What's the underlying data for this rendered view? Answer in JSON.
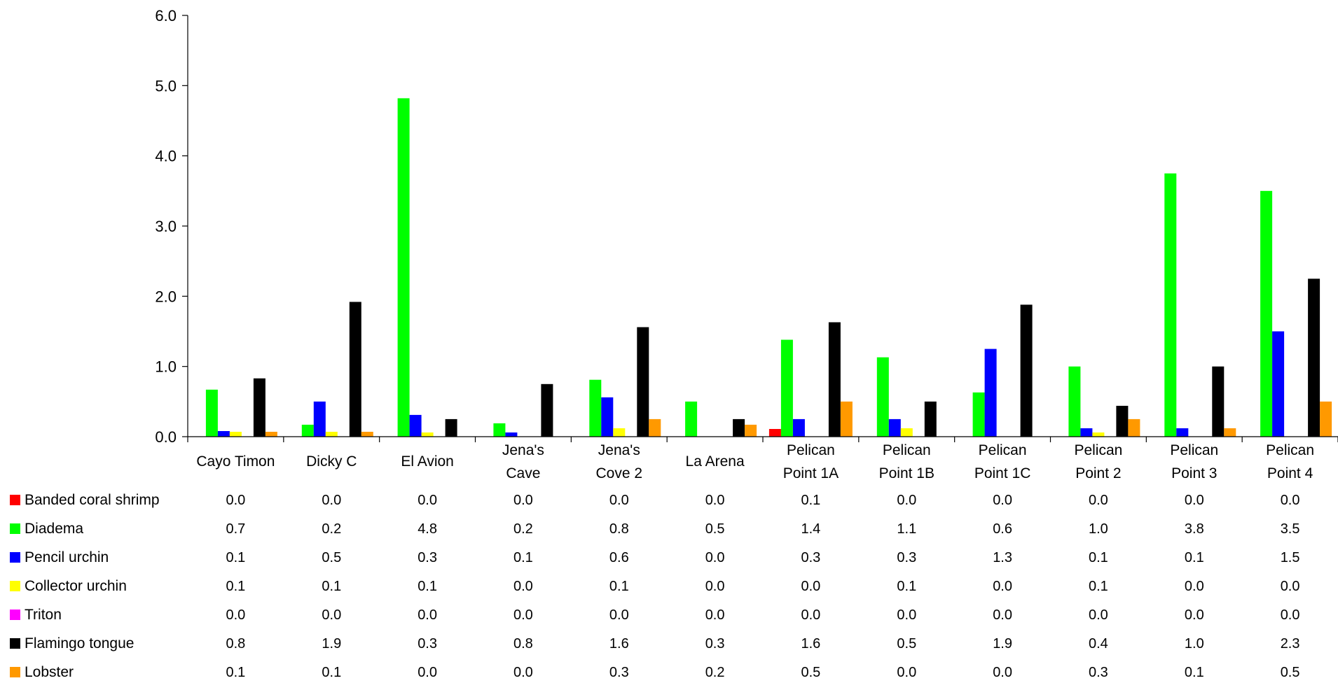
{
  "chart_data": {
    "type": "bar",
    "title": "",
    "xlabel": "",
    "ylabel": "",
    "ylim": [
      0,
      6
    ],
    "yticks": [
      "0.0",
      "1.0",
      "2.0",
      "3.0",
      "4.0",
      "5.0",
      "6.0"
    ],
    "grid": false,
    "legend": "bottom-left data table",
    "categories": [
      [
        "Cayo Timon"
      ],
      [
        "Dicky C"
      ],
      [
        "El Avion"
      ],
      [
        "Jena's",
        "Cave"
      ],
      [
        "Jena's",
        "Cove 2"
      ],
      [
        "La Arena"
      ],
      [
        "Pelican",
        "Point 1A"
      ],
      [
        "Pelican",
        "Point 1B"
      ],
      [
        "Pelican",
        "Point 1C"
      ],
      [
        "Pelican",
        "Point 2"
      ],
      [
        "Pelican",
        "Point 3"
      ],
      [
        "Pelican",
        "Point 4"
      ]
    ],
    "series": [
      {
        "name": "Banded coral shrimp",
        "color": "#ff0000",
        "values": [
          0.0,
          0.0,
          0.0,
          0.0,
          0.0,
          0.0,
          0.11,
          0.0,
          0.0,
          0.0,
          0.0,
          0.0
        ],
        "labels": [
          "0.0",
          "0.0",
          "0.0",
          "0.0",
          "0.0",
          "0.0",
          "0.1",
          "0.0",
          "0.0",
          "0.0",
          "0.0",
          "0.0"
        ]
      },
      {
        "name": "Diadema",
        "color": "#00ff00",
        "values": [
          0.67,
          0.17,
          4.82,
          0.19,
          0.81,
          0.5,
          1.38,
          1.13,
          0.63,
          1.0,
          3.75,
          3.5
        ],
        "labels": [
          "0.7",
          "0.2",
          "4.8",
          "0.2",
          "0.8",
          "0.5",
          "1.4",
          "1.1",
          "0.6",
          "1.0",
          "3.8",
          "3.5"
        ]
      },
      {
        "name": "Pencil urchin",
        "color": "#0000ff",
        "values": [
          0.08,
          0.5,
          0.31,
          0.06,
          0.56,
          0.0,
          0.25,
          0.25,
          1.25,
          0.12,
          0.12,
          1.5
        ],
        "labels": [
          "0.1",
          "0.5",
          "0.3",
          "0.1",
          "0.6",
          "0.0",
          "0.3",
          "0.3",
          "1.3",
          "0.1",
          "0.1",
          "1.5"
        ]
      },
      {
        "name": "Collector urchin",
        "color": "#ffff00",
        "values": [
          0.07,
          0.07,
          0.06,
          0.0,
          0.12,
          0.0,
          0.0,
          0.12,
          0.0,
          0.06,
          0.0,
          0.0
        ],
        "labels": [
          "0.1",
          "0.1",
          "0.1",
          "0.0",
          "0.1",
          "0.0",
          "0.0",
          "0.1",
          "0.0",
          "0.1",
          "0.0",
          "0.0"
        ]
      },
      {
        "name": "Triton",
        "color": "#ff00ff",
        "values": [
          0.0,
          0.0,
          0.0,
          0.0,
          0.0,
          0.0,
          0.0,
          0.0,
          0.0,
          0.0,
          0.0,
          0.0
        ],
        "labels": [
          "0.0",
          "0.0",
          "0.0",
          "0.0",
          "0.0",
          "0.0",
          "0.0",
          "0.0",
          "0.0",
          "0.0",
          "0.0",
          "0.0"
        ]
      },
      {
        "name": "Flamingo tongue",
        "color": "#000000",
        "values": [
          0.83,
          1.92,
          0.25,
          0.75,
          1.56,
          0.25,
          1.63,
          0.5,
          1.88,
          0.44,
          1.0,
          2.25
        ],
        "labels": [
          "0.8",
          "1.9",
          "0.3",
          "0.8",
          "1.6",
          "0.3",
          "1.6",
          "0.5",
          "1.9",
          "0.4",
          "1.0",
          "2.3"
        ]
      },
      {
        "name": "Lobster",
        "color": "#ff9900",
        "values": [
          0.07,
          0.07,
          0.0,
          0.0,
          0.25,
          0.17,
          0.5,
          0.0,
          0.0,
          0.25,
          0.12,
          0.5
        ],
        "labels": [
          "0.1",
          "0.1",
          "0.0",
          "0.0",
          "0.3",
          "0.2",
          "0.5",
          "0.0",
          "0.0",
          "0.3",
          "0.1",
          "0.5"
        ]
      }
    ]
  }
}
